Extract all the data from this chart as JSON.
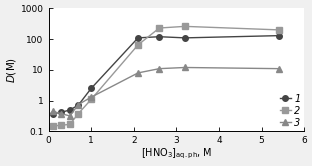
{
  "series": [
    {
      "label": "1",
      "x": [
        0.1,
        0.3,
        0.5,
        0.7,
        1.0,
        2.1,
        2.6,
        3.2,
        5.4
      ],
      "y": [
        0.38,
        0.42,
        0.5,
        0.72,
        2.5,
        110,
        120,
        110,
        130
      ],
      "color": "#444444",
      "marker": "o",
      "markersize": 4,
      "linestyle": "-"
    },
    {
      "label": "2",
      "x": [
        0.1,
        0.3,
        0.5,
        0.7,
        1.0,
        2.1,
        2.6,
        3.2,
        5.4
      ],
      "y": [
        0.15,
        0.16,
        0.17,
        0.38,
        1.1,
        65,
        230,
        260,
        200
      ],
      "color": "#999999",
      "marker": "s",
      "markersize": 4,
      "linestyle": "-"
    },
    {
      "label": "3",
      "x": [
        0.1,
        0.3,
        0.5,
        0.7,
        1.0,
        2.1,
        2.6,
        3.2,
        5.4
      ],
      "y": [
        0.45,
        0.38,
        0.32,
        0.75,
        1.3,
        8.0,
        11,
        12,
        11
      ],
      "color": "#888888",
      "marker": "^",
      "markersize": 4,
      "linestyle": "-"
    }
  ],
  "ylabel": "D(M)",
  "xlim": [
    0,
    6
  ],
  "ylim": [
    0.1,
    1000
  ],
  "xticks": [
    0,
    1,
    2,
    3,
    4,
    5,
    6
  ],
  "ytick_vals": [
    0.1,
    1,
    10,
    100,
    1000
  ],
  "ytick_labels": [
    "0.1",
    "1",
    "10",
    "100",
    "1000"
  ],
  "bg_color": "#f0f0f0",
  "plot_bg": "#ffffff"
}
